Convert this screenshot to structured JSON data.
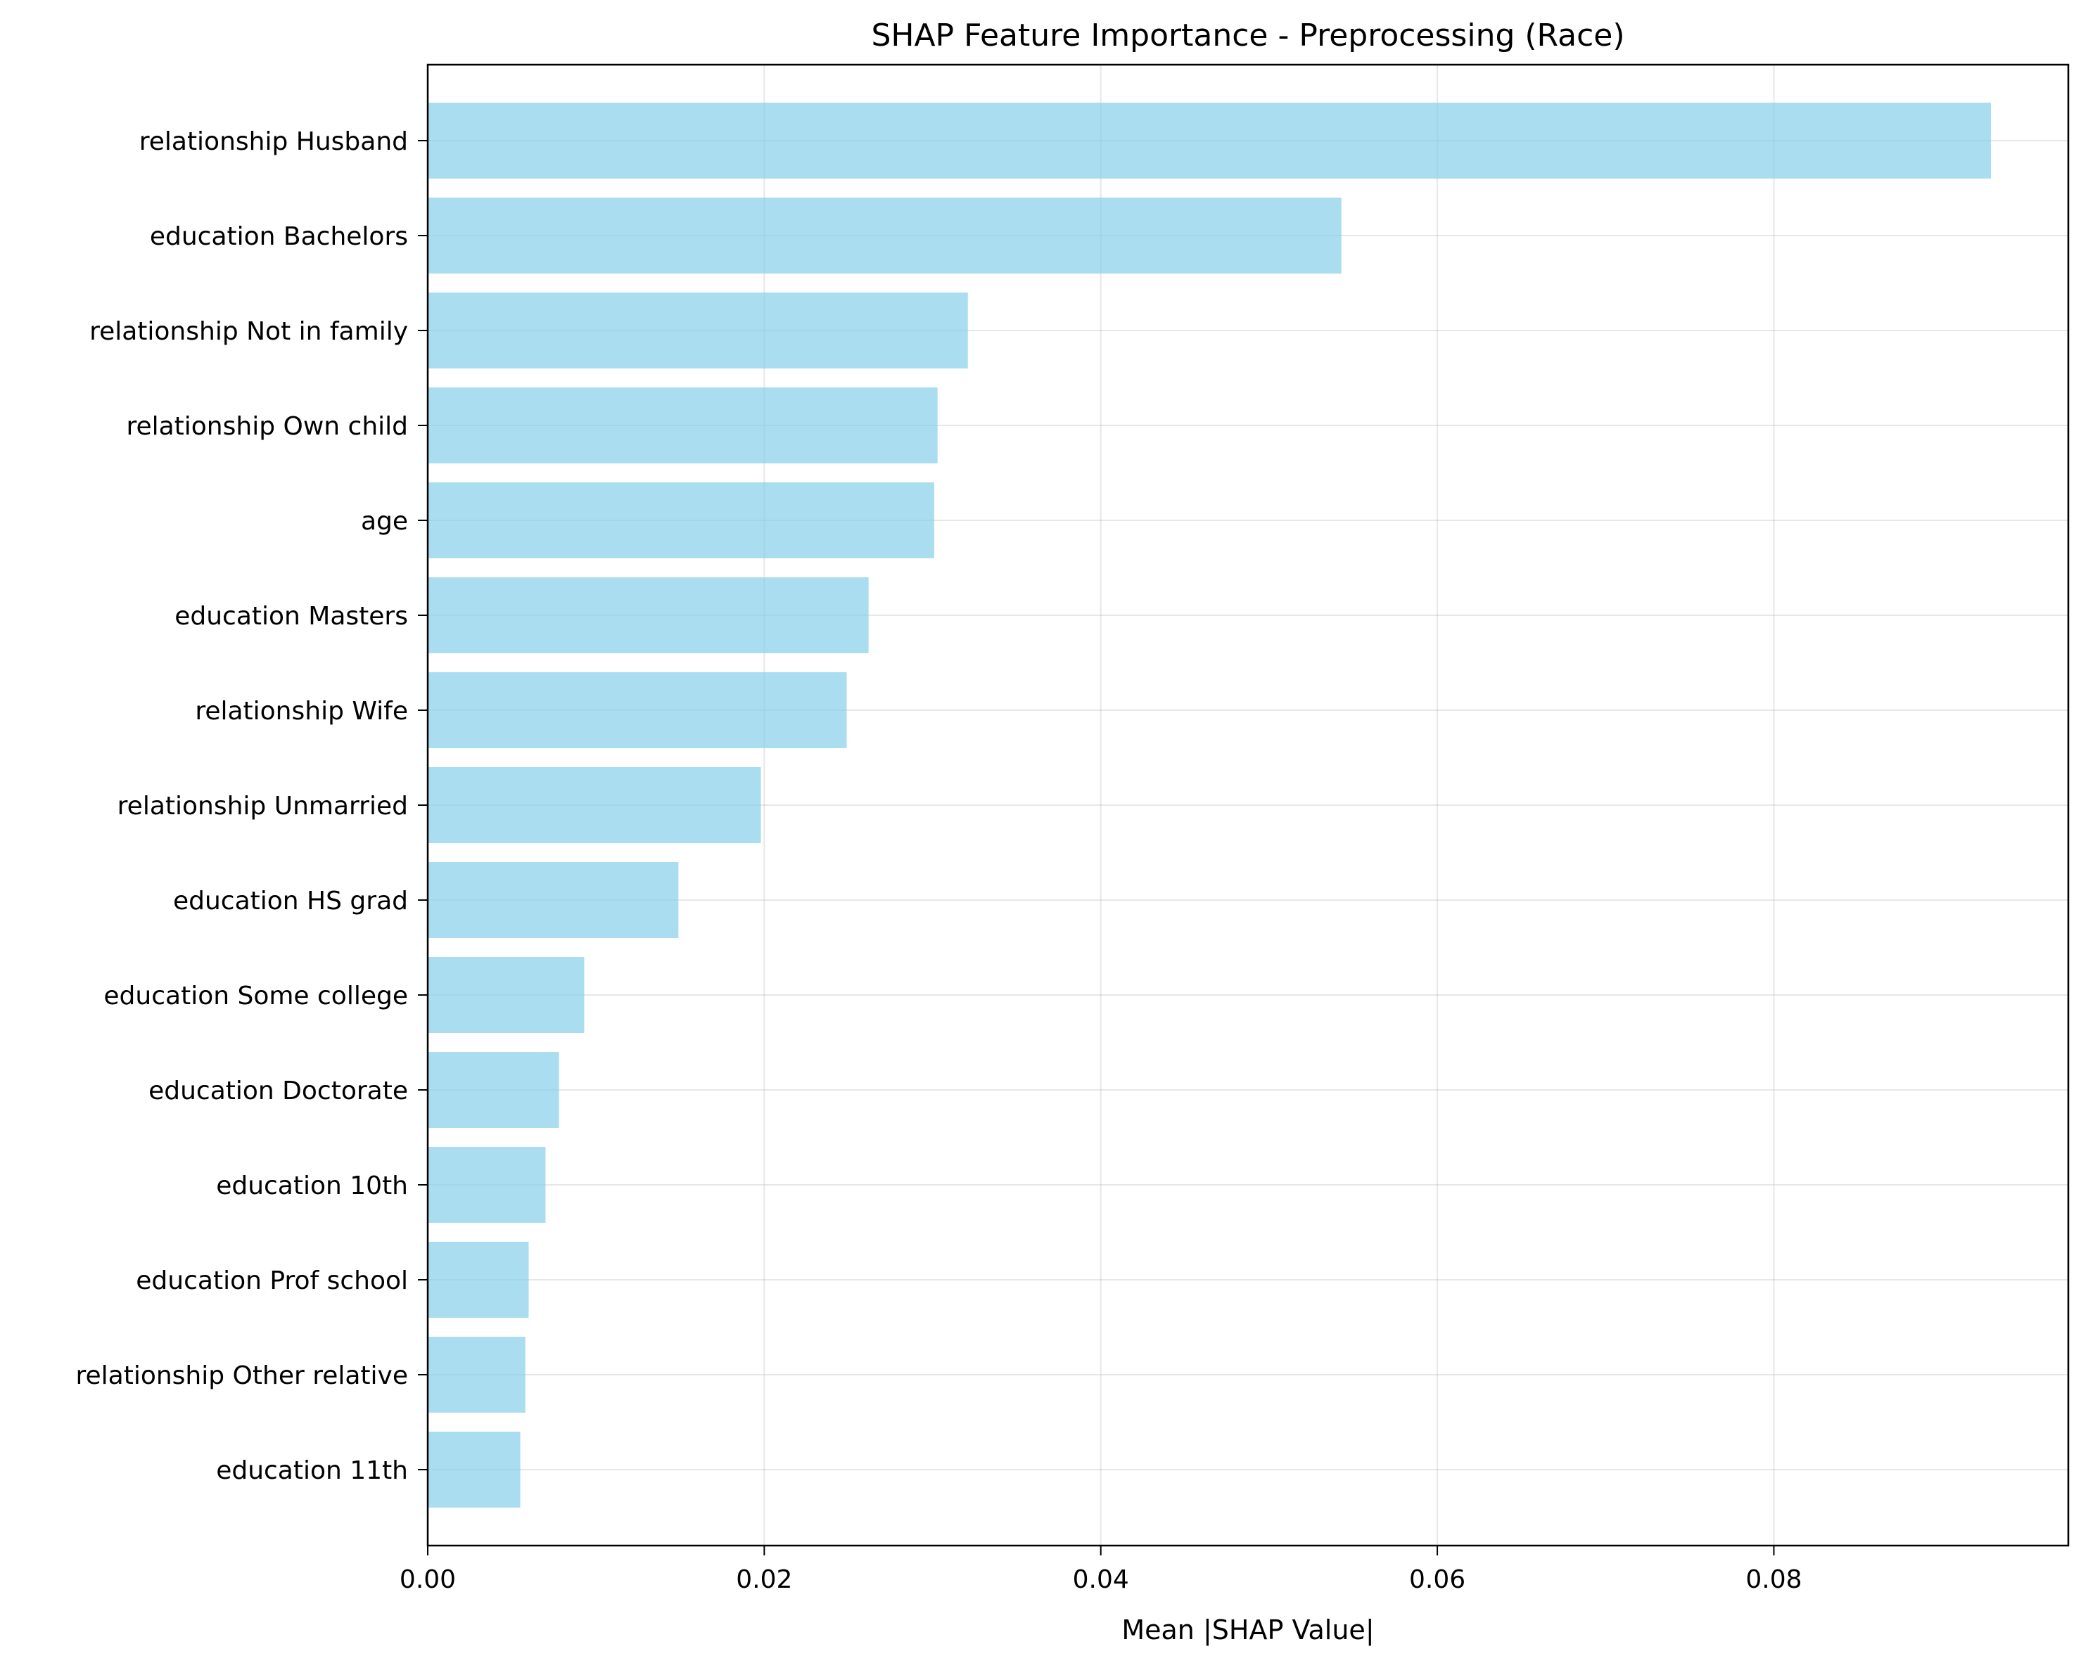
{
  "chart_data": {
    "type": "bar",
    "orientation": "horizontal",
    "title": "SHAP Feature Importance - Preprocessing (Race)",
    "xlabel": "Mean |SHAP Value|",
    "ylabel": "",
    "xlim": [
      0,
      0.0975
    ],
    "xticks": [
      0.0,
      0.02,
      0.04,
      0.06,
      0.08
    ],
    "xtick_labels": [
      "0.00",
      "0.02",
      "0.04",
      "0.06",
      "0.08"
    ],
    "grid": true,
    "bar_color": "#87ceeb",
    "categories": [
      "relationship Husband",
      "education Bachelors",
      "relationship Not in family",
      "relationship Own child",
      "age",
      "education Masters",
      "relationship Wife",
      "relationship Unmarried",
      "education HS grad",
      "education Some college",
      "education Doctorate",
      "education 10th",
      "education Prof school",
      "relationship Other relative",
      "education 11th"
    ],
    "values": [
      0.0929,
      0.0543,
      0.0321,
      0.0303,
      0.0301,
      0.0262,
      0.0249,
      0.0198,
      0.0149,
      0.0093,
      0.0078,
      0.007,
      0.006,
      0.0058,
      0.0055
    ]
  }
}
